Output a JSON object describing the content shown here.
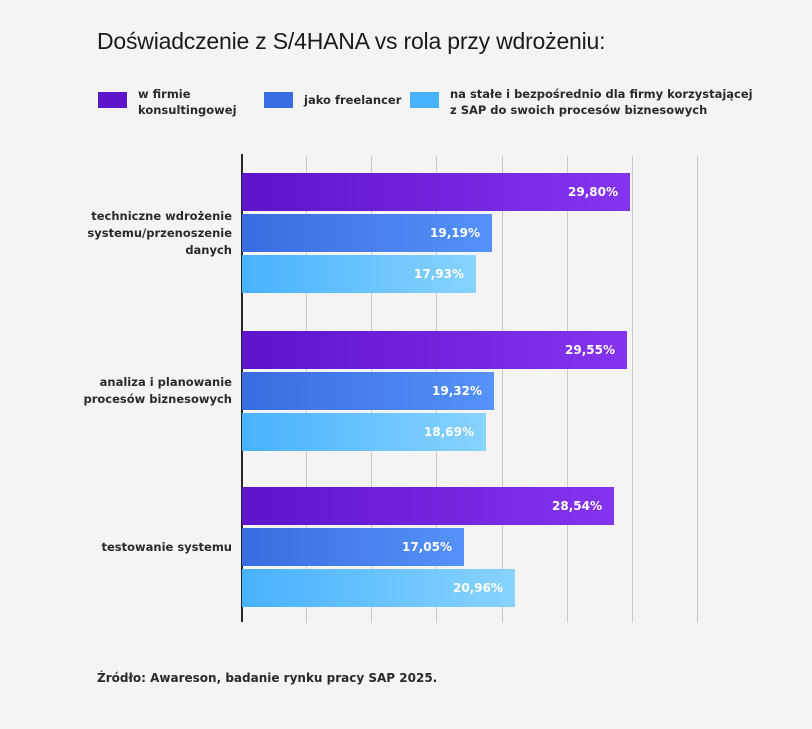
{
  "chart_data": {
    "type": "bar",
    "orientation": "horizontal",
    "title": "Doświadczenie z S/4HANA vs rola przy wdrożeniu:",
    "categories": [
      "techniczne wdrożenie systemu/przenoszenie danych",
      "analiza i planowanie procesów biznesowych",
      "testowanie systemu"
    ],
    "category_lines": [
      [
        "techniczne wdrożenie",
        "systemu/przenoszenie",
        "danych"
      ],
      [
        "analiza i planowanie",
        "procesów biznesowych"
      ],
      [
        "testowanie systemu"
      ]
    ],
    "series": [
      {
        "name": "w firmie konsultingowej",
        "name_lines": [
          "w firmie",
          "konsultingowej"
        ],
        "values": [
          29.8,
          29.55,
          28.54
        ],
        "labels": [
          "29,80%",
          "29,55%",
          "28,54%"
        ],
        "color_start": "#5e14c9",
        "color_end": "#8534f0"
      },
      {
        "name": "jako freelancer",
        "name_lines": [
          "jako freelancer"
        ],
        "values": [
          19.19,
          19.32,
          17.05
        ],
        "labels": [
          "19,19%",
          "19,32%",
          "17,05%"
        ],
        "color_start": "#386ce0",
        "color_end": "#5592f9"
      },
      {
        "name": "na stałe i bezpośrednio dla firmy korzystającej z SAP do swoich procesów biznesowych",
        "name_lines": [
          "na stałe i bezpośrednio dla firmy korzystającej",
          "z SAP do swoich procesów biznesowych"
        ],
        "values": [
          17.93,
          18.69,
          20.96
        ],
        "labels": [
          "17,93%",
          "18,69%",
          "20,96%"
        ],
        "color_start": "#47b2fd",
        "color_end": "#88d3ff"
      }
    ],
    "xlim": [
      0,
      35
    ],
    "x_grid_step": 5,
    "grid": true,
    "x_tick_labels_visible": false,
    "legend_position": "top",
    "xlabel": "",
    "ylabel": ""
  },
  "source": "Źródło: Awareson, badanie rynku pracy SAP 2025."
}
